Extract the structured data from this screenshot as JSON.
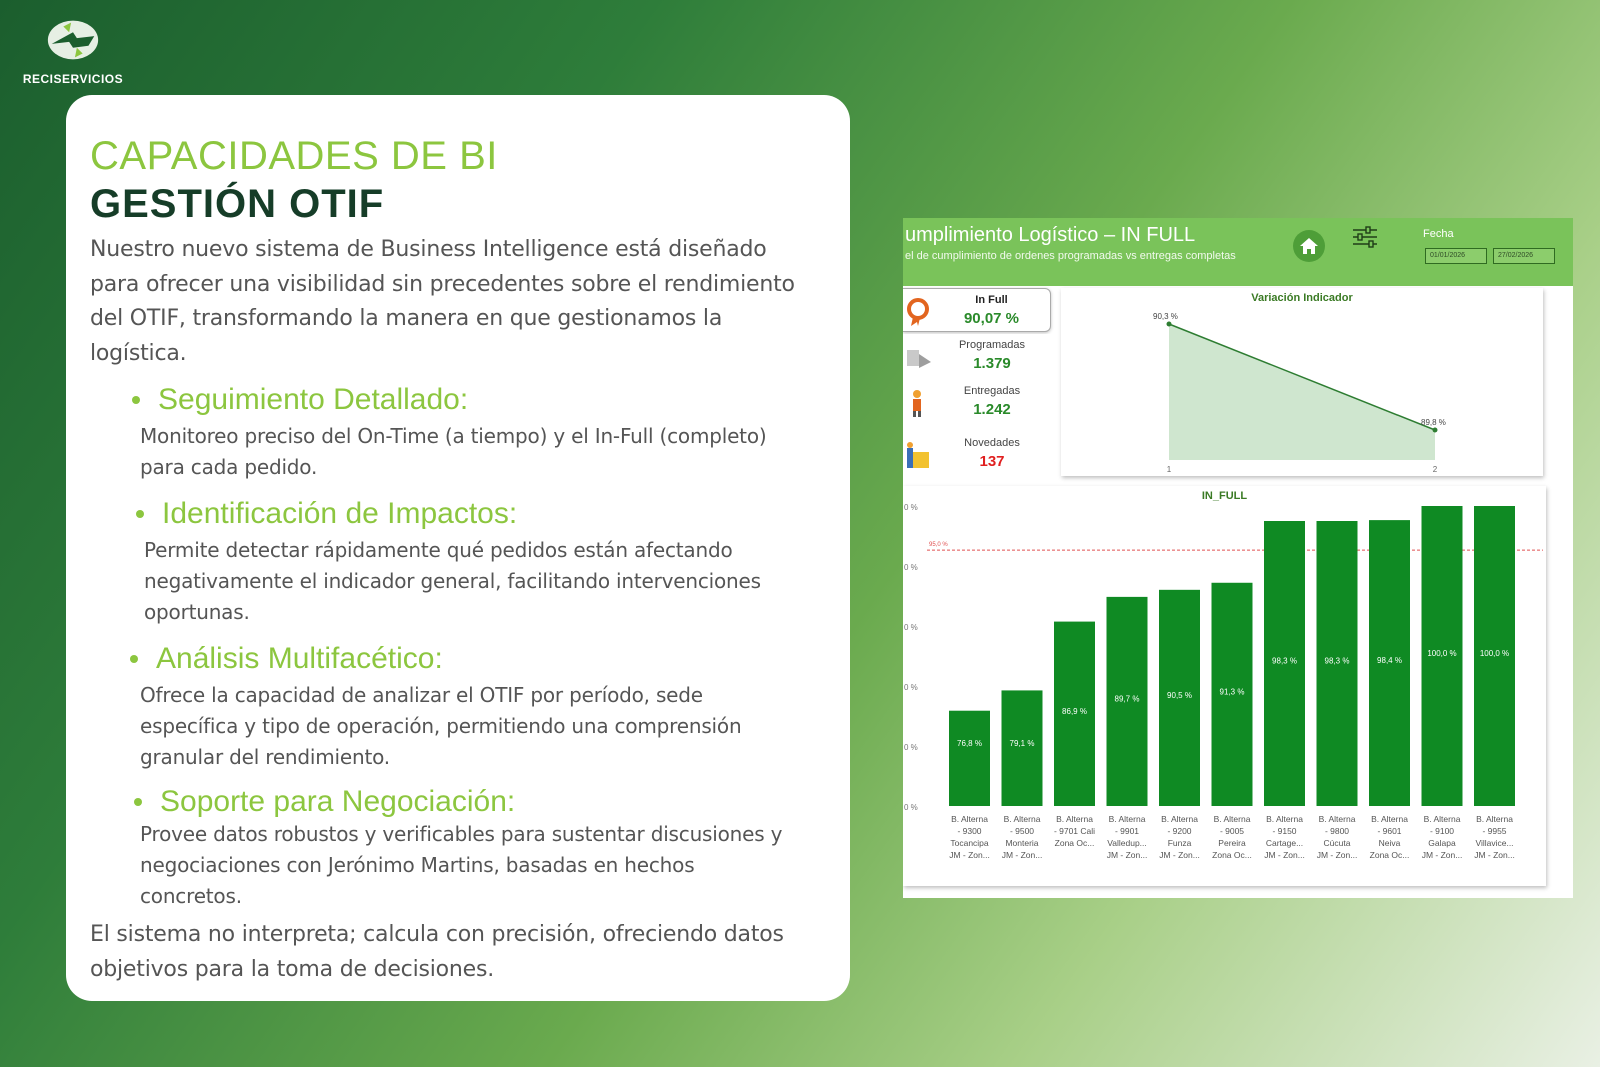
{
  "brand": {
    "name": "RECISERVICIOS"
  },
  "card": {
    "kicker": "CAPACIDADES DE BI",
    "headline": "GESTIÓN OTIF",
    "intro_lines": [
      "Nuestro nuevo sistema de Business Intelligence está diseñado",
      "para ofrecer una visibilidad sin precedentes sobre el rendimiento",
      "del OTIF, transformando la manera en que gestionamos la",
      "logística."
    ],
    "bullets": [
      {
        "title": "Seguimiento Detallado:",
        "lines": [
          "Monitoreo preciso del On-Time (a tiempo) y el In-Full (completo)",
          "para cada pedido."
        ]
      },
      {
        "title": "Identificación de Impactos:",
        "lines": [
          "Permite detectar rápidamente qué pedidos están afectando",
          "negativamente el indicador general, facilitando intervenciones",
          "oportunas."
        ]
      },
      {
        "title": "Análisis Multifacético:",
        "lines": [
          "Ofrece la capacidad de analizar el OTIF por período, sede",
          "específica y tipo de operación, permitiendo una comprensión",
          "granular del rendimiento."
        ]
      },
      {
        "title": "Soporte para Negociación:",
        "lines": [
          "Provee datos robustos y verificables para sustentar discusiones y",
          "negociaciones con Jerónimo Martins, basadas en hechos",
          "concretos."
        ]
      }
    ],
    "closing_lines": [
      "El sistema no interpreta; calcula con precisión, ofreciendo datos",
      "objetivos para la toma de decisiones."
    ]
  },
  "dashboard": {
    "title": "umplimiento Logístico – IN FULL",
    "subtitle": "el de cumplimiento de ordenes programadas vs entregas completas",
    "fecha_label": "Fecha",
    "date_from": "01/01/2026",
    "date_to": "27/02/2026",
    "kpis": [
      {
        "label": "In Full",
        "value": "90,07 %"
      },
      {
        "label": "Programadas",
        "value": "1.379"
      },
      {
        "label": "Entregadas",
        "value": "1.242"
      },
      {
        "label": "Novedades",
        "value": "137"
      }
    ],
    "colors": {
      "bar": "#0f8a23",
      "header": "#7ac35a",
      "target_line": "#e05050",
      "area": "#cfe6cf"
    }
  },
  "chart_data": [
    {
      "type": "area",
      "title": "Variación Indicador",
      "x": [
        "1",
        "2"
      ],
      "values": [
        90.3,
        89.8
      ],
      "data_labels": [
        "90,3 %",
        "89,8 %"
      ]
    },
    {
      "type": "bar",
      "title": "IN_FULL",
      "categories": [
        [
          "B. Alterna",
          "- 9300",
          "Tocancipa",
          "JM - Zon..."
        ],
        [
          "B. Alterna",
          "- 9500",
          "Monteria",
          "JM - Zon..."
        ],
        [
          "B. Alterna",
          "- 9701 Cali",
          "Zona Oc..."
        ],
        [
          "B. Alterna",
          "- 9901",
          "Valledup...",
          "JM - Zon..."
        ],
        [
          "B. Alterna",
          "- 9200",
          "Funza",
          "JM - Zon..."
        ],
        [
          "B. Alterna",
          "- 9005",
          "Pereira",
          "Zona Oc..."
        ],
        [
          "B. Alterna",
          "- 9150",
          "Cartage...",
          "JM - Zon..."
        ],
        [
          "B. Alterna",
          "- 9800",
          "Cúcuta",
          "JM - Zon..."
        ],
        [
          "B. Alterna",
          "- 9601",
          "Neiva",
          "Zona Oc..."
        ],
        [
          "B. Alterna",
          "- 9100",
          "Galapa",
          "JM - Zon..."
        ],
        [
          "B. Alterna",
          "- 9955",
          "Villavice...",
          "JM - Zon..."
        ]
      ],
      "values": [
        76.8,
        79.1,
        86.9,
        89.7,
        90.5,
        91.3,
        98.3,
        98.3,
        98.4,
        100.0,
        100.0
      ],
      "data_labels": [
        "76,8 %",
        "79,1 %",
        "86,9 %",
        "89,7 %",
        "90,5 %",
        "91,3 %",
        "98,3 %",
        "98,3 %",
        "98,4 %",
        "100,0 %",
        "100,0 %"
      ],
      "ylim": [
        66,
        100
      ],
      "y_tick_labels": [
        "0 %",
        "0 %",
        "0 %",
        "0 %",
        "0 %",
        "0 %"
      ],
      "target_label": "95,0 %",
      "target_value": 95.0
    }
  ]
}
